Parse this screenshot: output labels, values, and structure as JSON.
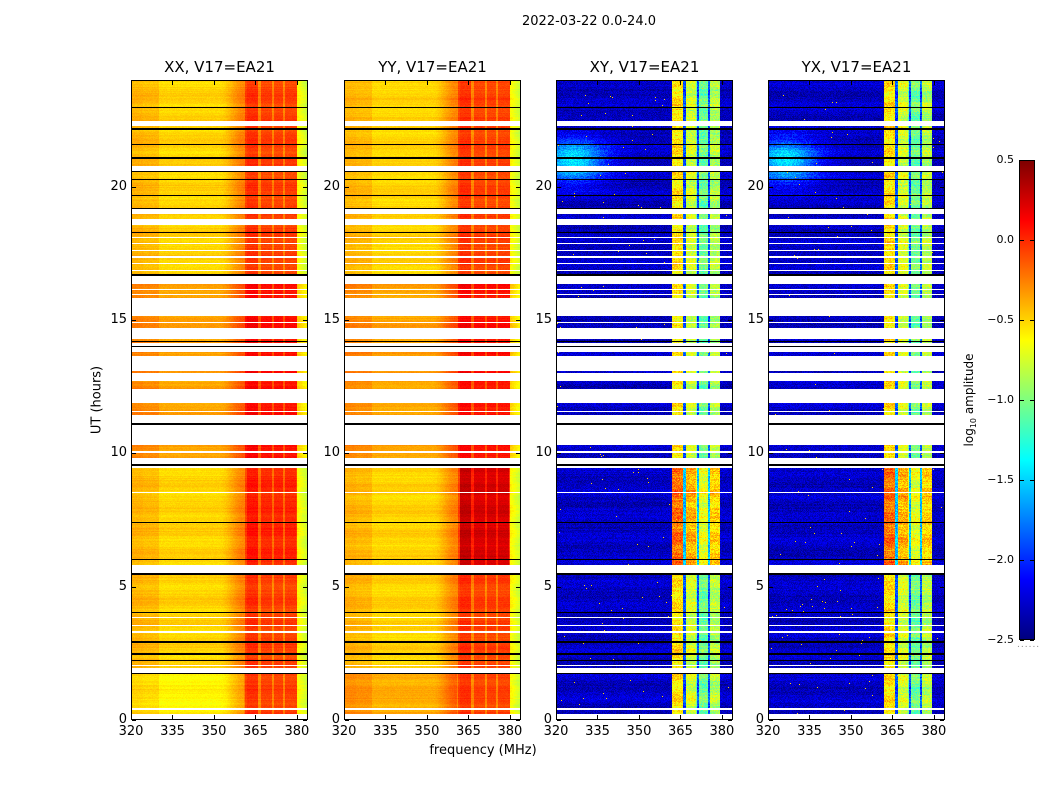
{
  "chart_data": {
    "type": "heatmap",
    "title": "2022-03-22 0.0-24.0",
    "xlabel": "frequency (MHz)",
    "ylabel": "UT (hours)",
    "xlim": [
      320,
      384
    ],
    "ylim": [
      0,
      24
    ],
    "xticks": [
      "320",
      "335",
      "350",
      "365",
      "380"
    ],
    "xtick_values": [
      320,
      335,
      350,
      365,
      380
    ],
    "yticks": [
      "0",
      "5",
      "10",
      "15",
      "20"
    ],
    "ytick_values": [
      0,
      5,
      10,
      15,
      20
    ],
    "panels": [
      {
        "title": "XX, V17=EA21",
        "kind": "parallel",
        "variant": "xx"
      },
      {
        "title": "YY, V17=EA21",
        "kind": "parallel",
        "variant": "yy"
      },
      {
        "title": "XY, V17=EA21",
        "kind": "cross",
        "variant": "xy"
      },
      {
        "title": "YX, V17=EA21",
        "kind": "cross",
        "variant": "yx"
      }
    ],
    "colorbar": {
      "label_prefix": "log",
      "label_sub": "10",
      "label_suffix": " amplitude",
      "range": [
        -2.5,
        0.5
      ],
      "ticks": [
        "0.5",
        "0.0",
        "−0.5",
        "−1.0",
        "−1.5",
        "−2.0",
        "−2.5"
      ],
      "tick_values": [
        0.5,
        0.0,
        -0.5,
        -1.0,
        -1.5,
        -2.0,
        -2.5
      ],
      "colormap": "jet",
      "under_marker": "......"
    },
    "flagged_ut_ranges": [
      [
        22.3,
        22.5
      ],
      [
        20.62,
        20.8
      ],
      [
        19.0,
        19.2
      ],
      [
        18.6,
        18.8
      ],
      [
        18.1,
        18.15
      ],
      [
        17.85,
        17.9
      ],
      [
        17.6,
        17.65
      ],
      [
        17.35,
        17.4
      ],
      [
        17.1,
        17.15
      ],
      [
        16.85,
        16.9
      ],
      [
        16.35,
        16.7
      ],
      [
        16.12,
        16.16
      ],
      [
        15.96,
        16.0
      ],
      [
        15.15,
        15.85
      ],
      [
        14.88,
        14.95
      ],
      [
        14.3,
        14.7
      ],
      [
        13.8,
        14.15
      ],
      [
        13.1,
        13.65
      ],
      [
        12.7,
        13.0
      ],
      [
        11.9,
        12.4
      ],
      [
        11.55,
        11.6
      ],
      [
        11.15,
        11.45
      ],
      [
        10.3,
        11.1
      ],
      [
        10.0,
        10.1
      ],
      [
        9.45,
        9.8
      ],
      [
        8.9,
        8.93
      ],
      [
        8.5,
        8.53
      ],
      [
        7.7,
        7.73
      ],
      [
        5.5,
        5.8
      ],
      [
        3.8,
        3.85
      ],
      [
        3.5,
        3.55
      ],
      [
        3.25,
        3.3
      ],
      [
        2.0,
        2.05
      ],
      [
        1.72,
        1.92
      ],
      [
        0.35,
        0.4
      ],
      [
        0,
        0.2
      ]
    ],
    "boundary_ut_lines": [
      23.0,
      22.2,
      21.6,
      21.1,
      20.6,
      20.3,
      19.7,
      19.2,
      18.3,
      16.7,
      14.2,
      14.0,
      11.1,
      9.55,
      7.4,
      6.0,
      5.45,
      4.0,
      2.9,
      2.45,
      2.2,
      1.7
    ]
  }
}
